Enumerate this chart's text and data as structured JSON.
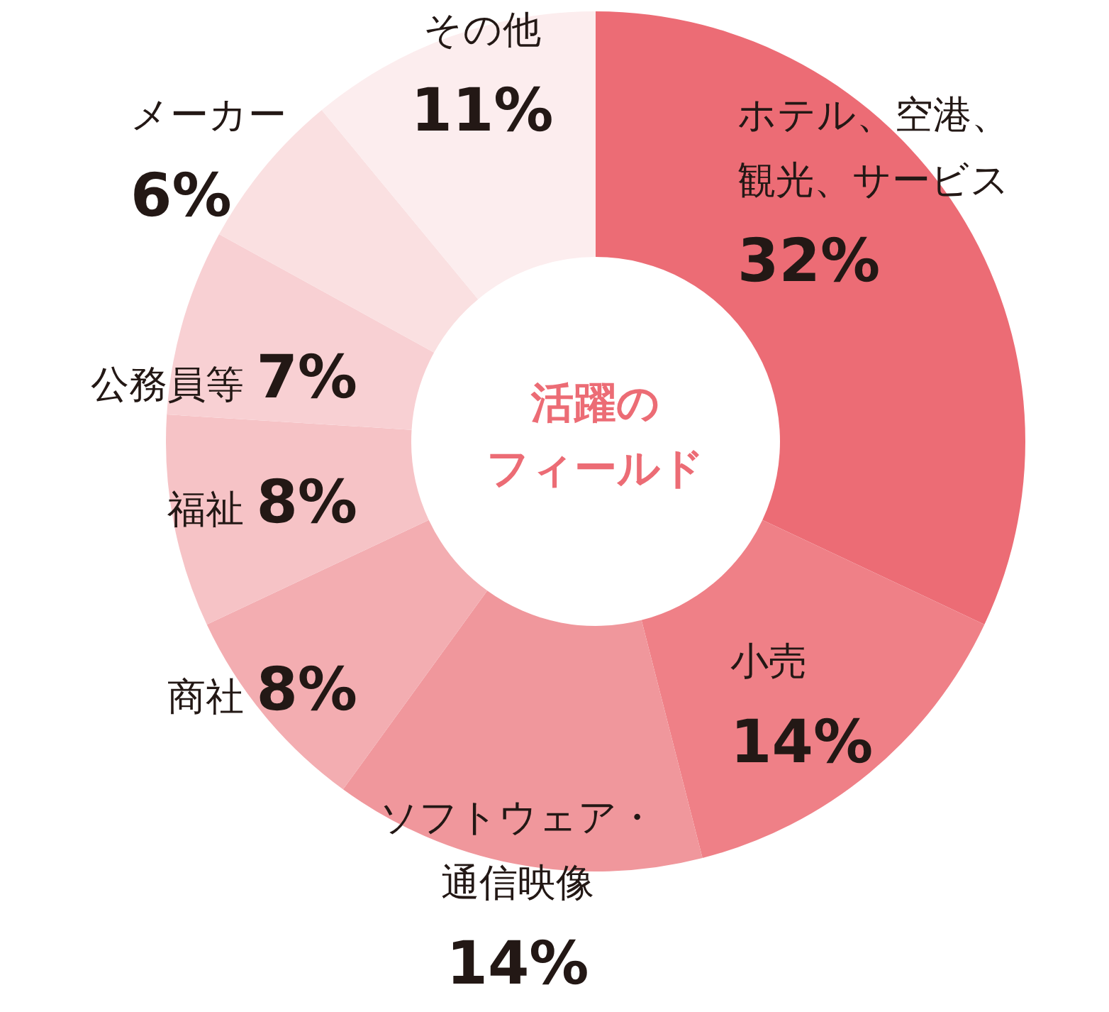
{
  "chart_data": {
    "type": "donut",
    "title": "活躍のフィールド",
    "categories": [
      "ホテル、空港、観光、サービス",
      "小売",
      "ソフトウェア・通信映像",
      "商社",
      "福祉",
      "公務員等",
      "メーカー",
      "その他"
    ],
    "values": [
      32,
      14,
      14,
      8,
      8,
      7,
      6,
      11
    ],
    "value_labels": [
      "32%",
      "14%",
      "14%",
      "8%",
      "8%",
      "7%",
      "6%",
      "11%"
    ],
    "colors": [
      "#ec6c75",
      "#ef8087",
      "#f0979c",
      "#f3adb1",
      "#f6c3c6",
      "#f8d0d3",
      "#fae0e1",
      "#fcedee"
    ]
  }
}
